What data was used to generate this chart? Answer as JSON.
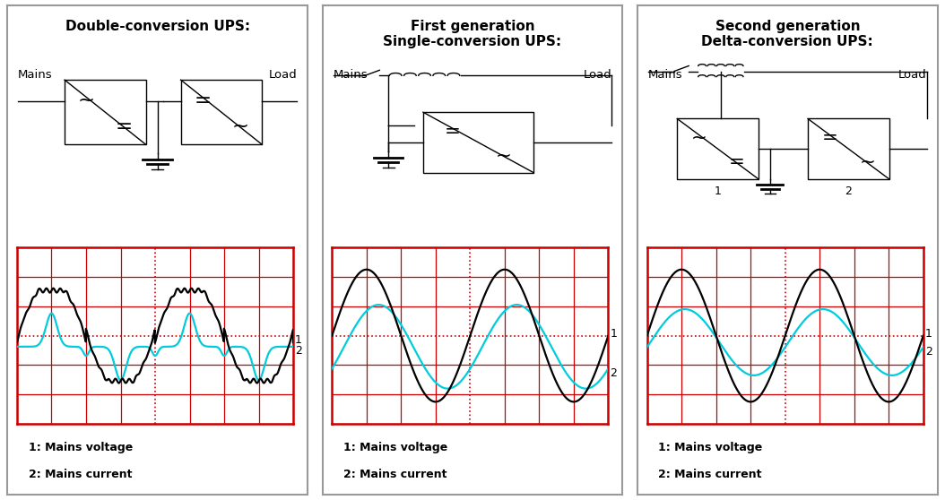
{
  "panel_titles": [
    "Double-conversion UPS:",
    "First generation\nSingle-conversion UPS:",
    "Second generation\nDelta-conversion UPS:"
  ],
  "bg_color": "#ffffff",
  "grid_bg_color": "#ffffff",
  "grid_color": "#cc0000",
  "waveform_color_1": "#000000",
  "waveform_color_2": "#00ccdd",
  "panel_border_color": "#999999",
  "title_fontsize": 11,
  "label_fontsize": 9,
  "n_grid_vert": 8,
  "n_grid_horiz": 6
}
